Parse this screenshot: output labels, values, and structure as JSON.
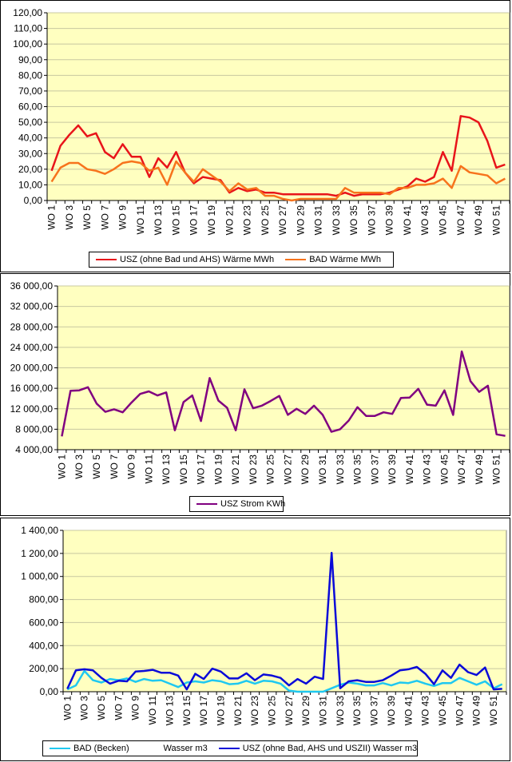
{
  "chart_data": [
    {
      "type": "line",
      "title": "",
      "categories": [
        "WO 1",
        "WO 2",
        "WO 3",
        "WO 4",
        "WO 5",
        "WO 6",
        "WO 7",
        "WO 8",
        "WO 9",
        "WO 10",
        "WO 11",
        "WO 12",
        "WO 13",
        "WO 14",
        "WO 15",
        "WO 16",
        "WO 17",
        "WO 18",
        "WO 19",
        "WO 20",
        "WO 21",
        "WO 22",
        "WO 23",
        "WO 24",
        "WO 25",
        "WO 26",
        "WO 27",
        "WO 28",
        "WO 29",
        "WO 30",
        "WO 31",
        "WO 32",
        "WO 33",
        "WO 34",
        "WO 35",
        "WO 36",
        "WO 37",
        "WO 38",
        "WO 39",
        "WO 40",
        "WO 41",
        "WO 42",
        "WO 43",
        "WO 44",
        "WO 45",
        "WO 46",
        "WO 47",
        "WO 48",
        "WO 49",
        "WO 50",
        "WO 51",
        "WO 52"
      ],
      "tick_labels": [
        "WO 1",
        "WO 3",
        "WO 5",
        "WO 7",
        "WO 9",
        "WO 11",
        "WO 13",
        "WO 15",
        "WO 17",
        "WO 19",
        "WO 21",
        "WO 23",
        "WO 25",
        "WO 27",
        "WO 29",
        "WO 31",
        "WO 33",
        "WO 35",
        "WO 37",
        "WO 39",
        "WO 41",
        "WO 43",
        "WO 45",
        "WO 47",
        "WO 49",
        "WO 51"
      ],
      "y_ticks": [
        "0,00",
        "10,00",
        "20,00",
        "30,00",
        "40,00",
        "50,00",
        "60,00",
        "70,00",
        "80,00",
        "90,00",
        "100,00",
        "110,00",
        "120,00"
      ],
      "ylim": [
        0,
        120
      ],
      "plot_bg": "#ffffc0",
      "series": [
        {
          "name": "USZ (ohne Bad und AHS) Wärme  MWh",
          "color": "#e8141a",
          "values": [
            19,
            35,
            42,
            48,
            41,
            43,
            31,
            27,
            36,
            28,
            28,
            15,
            27,
            21,
            31,
            18,
            11,
            15,
            14,
            13,
            5,
            8,
            6,
            7,
            5,
            5,
            4,
            4,
            4,
            4,
            4,
            4,
            3,
            5,
            3,
            4,
            4,
            4,
            5,
            7,
            9,
            14,
            12,
            15,
            31,
            19,
            54,
            53,
            50,
            38,
            21,
            23
          ]
        },
        {
          "name": "BAD Wärme  MWh",
          "color": "#f7731c",
          "values": [
            12,
            21,
            24,
            24,
            20,
            19,
            17,
            20,
            24,
            25,
            24,
            19,
            21,
            10,
            25,
            18,
            12,
            20,
            16,
            12,
            6,
            11,
            7,
            8,
            3,
            3,
            1,
            0,
            1,
            1,
            1,
            1,
            1,
            8,
            5,
            5,
            5,
            5,
            4,
            8,
            8,
            10,
            10,
            11,
            14,
            8,
            22,
            18,
            17,
            16,
            11,
            14
          ]
        }
      ]
    },
    {
      "type": "line",
      "title": "",
      "categories": [
        "WO 1",
        "WO 2",
        "WO 3",
        "WO 4",
        "WO 5",
        "WO 6",
        "WO 7",
        "WO 8",
        "WO 9",
        "WO 10",
        "WO 11",
        "WO 12",
        "WO 13",
        "WO 14",
        "WO 15",
        "WO 16",
        "WO 17",
        "WO 18",
        "WO 19",
        "WO 20",
        "WO 21",
        "WO 22",
        "WO 23",
        "WO 24",
        "WO 25",
        "WO 26",
        "WO 27",
        "WO 28",
        "WO 29",
        "WO 30",
        "WO 31",
        "WO 32",
        "WO 33",
        "WO 34",
        "WO 35",
        "WO 36",
        "WO 37",
        "WO 38",
        "WO 39",
        "WO 40",
        "WO 41",
        "WO 42",
        "WO 43",
        "WO 44",
        "WO 45",
        "WO 46",
        "WO 47",
        "WO 48",
        "WO 49",
        "WO 50",
        "WO 51",
        "WO 52"
      ],
      "tick_labels": [
        "WO 1",
        "WO 3",
        "WO 5",
        "WO 7",
        "WO 9",
        "WO 11",
        "WO 13",
        "WO 15",
        "WO 17",
        "WO 19",
        "WO 21",
        "WO 23",
        "WO 25",
        "WO 27",
        "WO 29",
        "WO 31",
        "WO 33",
        "WO 35",
        "WO 37",
        "WO 39",
        "WO 41",
        "WO 43",
        "WO 45",
        "WO 47",
        "WO 49",
        "WO 51"
      ],
      "y_ticks": [
        "4 000,00",
        "8 000,00",
        "12 000,00",
        "16 000,00",
        "20 000,00",
        "24 000,00",
        "28 000,00",
        "32 000,00",
        "36 000,00"
      ],
      "ylim": [
        4000,
        36000
      ],
      "plot_bg": "#ffffc0",
      "series": [
        {
          "name": "USZ Strom  KWh",
          "color": "#800080",
          "values": [
            6600,
            15500,
            15600,
            16200,
            13000,
            11400,
            11900,
            11300,
            13200,
            14900,
            15400,
            14600,
            15200,
            7800,
            13300,
            14600,
            9600,
            18000,
            13600,
            12200,
            7800,
            15800,
            12100,
            12600,
            13500,
            14500,
            10800,
            12000,
            11000,
            12600,
            10800,
            7500,
            8000,
            9700,
            12300,
            10600,
            10600,
            11300,
            11000,
            14100,
            14200,
            15900,
            12800,
            12600,
            15600,
            10800,
            23200,
            17400,
            15300,
            16500,
            7000,
            6700
          ]
        }
      ]
    },
    {
      "type": "line",
      "title": "",
      "categories": [
        "WO 1",
        "WO 2",
        "WO 3",
        "WO 4",
        "WO 5",
        "WO 6",
        "WO 7",
        "WO 8",
        "WO 9",
        "WO 10",
        "WO 11",
        "WO 12",
        "WO 13",
        "WO 14",
        "WO 15",
        "WO 16",
        "WO 17",
        "WO 18",
        "WO 19",
        "WO 20",
        "WO 21",
        "WO 22",
        "WO 23",
        "WO 24",
        "WO 25",
        "WO 26",
        "WO 27",
        "WO 28",
        "WO 29",
        "WO 30",
        "WO 31",
        "WO 32",
        "WO 33",
        "WO 34",
        "WO 35",
        "WO 36",
        "WO 37",
        "WO 38",
        "WO 39",
        "WO 40",
        "WO 41",
        "WO 42",
        "WO 43",
        "WO 44",
        "WO 45",
        "WO 46",
        "WO 47",
        "WO 48",
        "WO 49",
        "WO 50",
        "WO 51",
        "WO 52"
      ],
      "tick_labels": [
        "WO 1",
        "WO 3",
        "WO 5",
        "WO 7",
        "WO 9",
        "WO 11",
        "WO 13",
        "WO 15",
        "WO 17",
        "WO 19",
        "WO 21",
        "WO 23",
        "WO 25",
        "WO 27",
        "WO 29",
        "WO 31",
        "WO 33",
        "WO 35",
        "WO 37",
        "WO 39",
        "WO 41",
        "WO 43",
        "WO 45",
        "WO 47",
        "WO 49",
        "WO 51"
      ],
      "y_ticks": [
        "0,00",
        "200,00",
        "400,00",
        "600,00",
        "800,00",
        "1 000,00",
        "1 200,00",
        "1 400,00"
      ],
      "ylim": [
        0,
        1400
      ],
      "plot_bg": "#ffffc0",
      "series": [
        {
          "name": "BAD (Becken)              Wasser m3",
          "color": "#1fc8f0",
          "values": [
            20,
            55,
            180,
            100,
            80,
            110,
            100,
            115,
            85,
            110,
            95,
            100,
            70,
            40,
            80,
            90,
            80,
            100,
            90,
            65,
            70,
            95,
            70,
            95,
            90,
            70,
            10,
            0,
            0,
            0,
            0,
            30,
            60,
            80,
            70,
            55,
            55,
            75,
            55,
            80,
            75,
            95,
            70,
            50,
            75,
            75,
            120,
            90,
            60,
            90,
            30,
            65
          ]
        },
        {
          "name": "USZ (ohne Bad, AHS und USZII) Wasser  m3",
          "color": "#0a0ad8",
          "values": [
            25,
            185,
            195,
            185,
            120,
            70,
            95,
            90,
            175,
            180,
            190,
            165,
            165,
            140,
            20,
            155,
            110,
            200,
            175,
            115,
            115,
            160,
            100,
            150,
            140,
            120,
            55,
            110,
            70,
            130,
            110,
            1205,
            30,
            90,
            100,
            85,
            85,
            100,
            140,
            185,
            195,
            215,
            155,
            65,
            185,
            120,
            235,
            170,
            145,
            210,
            20,
            25
          ]
        }
      ]
    }
  ]
}
